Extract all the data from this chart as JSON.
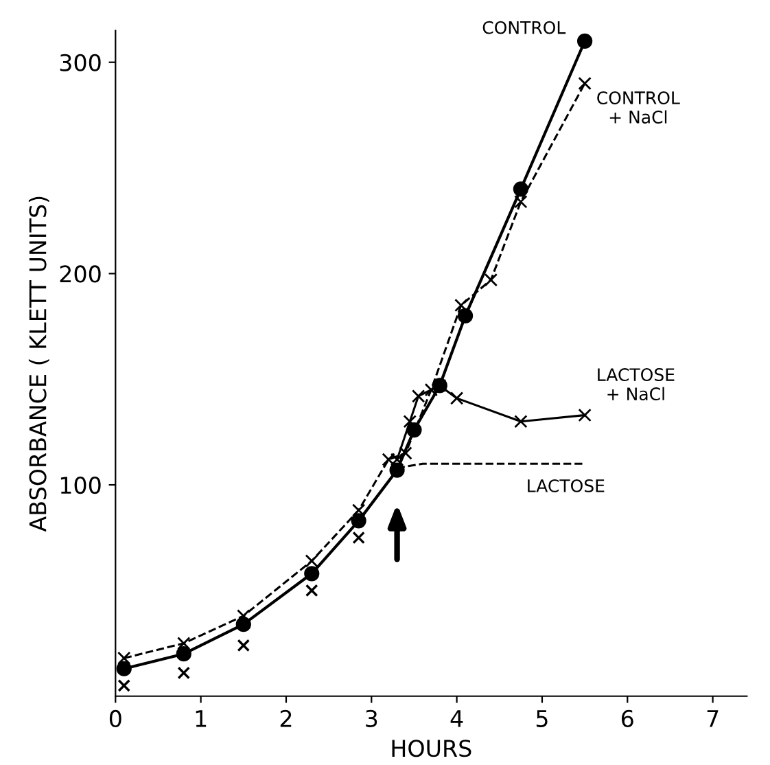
{
  "chart_data": {
    "type": "line",
    "xlabel": "HOURS",
    "ylabel": "ABSORBANCE ( KLETT UNITS)",
    "xlim": [
      0,
      7.4
    ],
    "ylim": [
      0,
      315
    ],
    "xticks": [
      0,
      1,
      2,
      3,
      4,
      5,
      6,
      7
    ],
    "yticks": [
      100,
      200,
      300
    ],
    "grid": false,
    "legend": false,
    "series": [
      {
        "name": "CONTROL",
        "color": "#000000",
        "marker": "circle",
        "line_style": "solid",
        "x": [
          0.1,
          0.8,
          1.5,
          2.3,
          2.85,
          3.3,
          3.5,
          3.8,
          4.1,
          4.75,
          5.5
        ],
        "values": [
          13,
          20,
          34,
          58,
          83,
          107,
          126,
          147,
          180,
          240,
          310
        ]
      },
      {
        "name": "CONTROL\n+ NaCl",
        "color": "#000000",
        "marker": "cross",
        "line_style": "dashed",
        "x": [
          0.1,
          0.8,
          1.5,
          2.3,
          2.85,
          3.2,
          3.4,
          3.7,
          4.05,
          4.4,
          4.75,
          5.5
        ],
        "values": [
          18,
          25,
          38,
          64,
          88,
          112,
          115,
          145,
          185,
          197,
          234,
          290
        ]
      },
      {
        "name": "LACTOSE\n+ NaCl",
        "color": "#000000",
        "marker": "cross",
        "line_style": "solid",
        "x": [
          3.3,
          3.45,
          3.55,
          3.8,
          4.0,
          4.75,
          5.5
        ],
        "values": [
          112,
          130,
          142,
          147,
          141,
          130,
          133
        ]
      },
      {
        "name": "LACTOSE",
        "color": "#000000",
        "marker": "none",
        "line_style": "dashed",
        "x": [
          3.3,
          3.6,
          4.5,
          5.5
        ],
        "values": [
          108,
          110,
          110,
          110
        ]
      },
      {
        "type": "scatter",
        "color": "#000000",
        "marker": "cross",
        "x": [
          0.1,
          0.8,
          1.5,
          2.3,
          2.85
        ],
        "values": [
          5,
          11,
          24,
          50,
          75
        ]
      }
    ]
  }
}
